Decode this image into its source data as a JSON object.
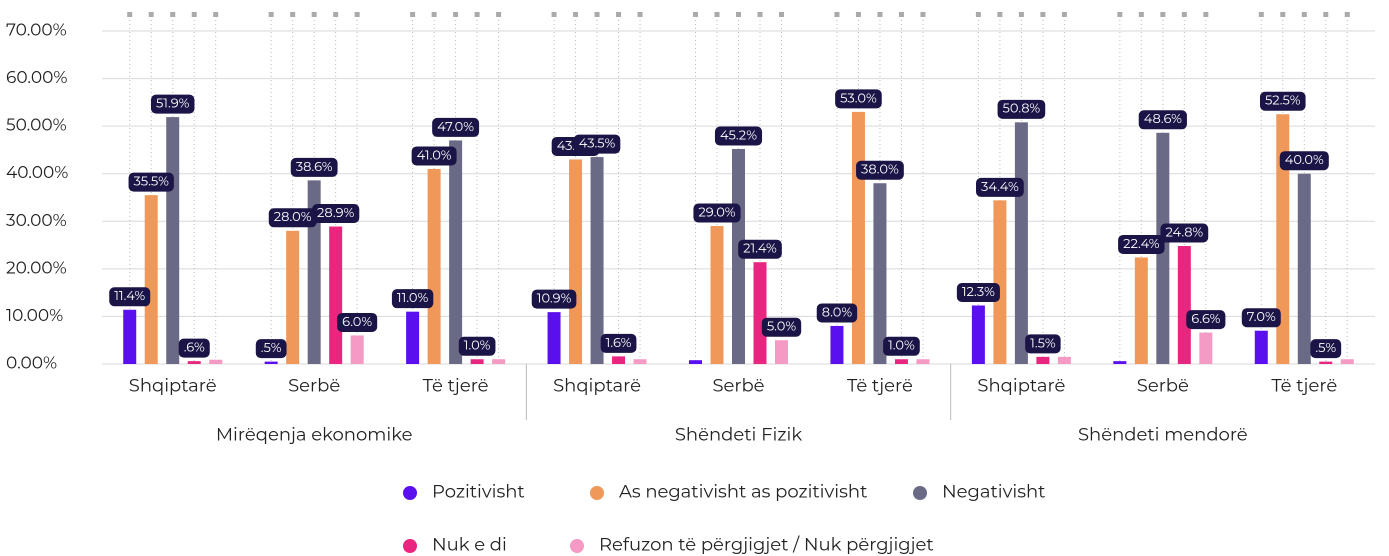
{
  "chart_data": {
    "type": "bar",
    "groups": [
      "Mirëqenja ekonomike",
      "Shëndeti Fizik",
      "Shëndeti mendorë"
    ],
    "categories": [
      "Shqiptarë",
      "Serbë",
      "Të tjerë",
      "Shqiptarë",
      "Serbë",
      "Të tjerë",
      "Shqiptarë",
      "Serbë",
      "Të tjerë"
    ],
    "series": [
      {
        "name": "Pozitivisht",
        "color": "#5a10ee",
        "values": [
          11.4,
          0.5,
          11.0,
          10.9,
          0.8,
          8.0,
          12.3,
          0.6,
          7.0
        ],
        "value_labels": [
          "11.4%",
          ".5%",
          "11.0%",
          "10.9%",
          null,
          "8.0%",
          "12.3%",
          null,
          "7.0%"
        ]
      },
      {
        "name": "As negativisht as pozitivisht",
        "color": "#f0985a",
        "values": [
          35.5,
          28.0,
          41.0,
          43.0,
          29.0,
          53.0,
          34.4,
          22.4,
          52.5
        ],
        "value_labels": [
          "35.5%",
          "28.0%",
          "41.0%",
          "43.0%",
          "29.0%",
          "53.0%",
          "34.4%",
          "22.4%",
          "52.5%"
        ]
      },
      {
        "name": "Negativisht",
        "color": "#6b6a86",
        "values": [
          51.9,
          38.6,
          47.0,
          43.5,
          45.2,
          38.0,
          50.8,
          48.6,
          40.0
        ],
        "value_labels": [
          "51.9%",
          "38.6%",
          "47.0%",
          "43.5%",
          "45.2%",
          "38.0%",
          "50.8%",
          "48.6%",
          "40.0%"
        ]
      },
      {
        "name": "Nuk e di",
        "color": "#e8257f",
        "values": [
          0.6,
          28.9,
          1.0,
          1.6,
          21.4,
          1.0,
          1.5,
          24.8,
          0.5
        ],
        "value_labels": [
          ".6%",
          "28.9%",
          "1.0%",
          "1.6%",
          "21.4%",
          "1.0%",
          "1.5%",
          "24.8%",
          ".5%"
        ]
      },
      {
        "name": "Refuzon të përgjigjet / Nuk përgjigjet",
        "color": "#f49ac4",
        "values": [
          0.9,
          6.0,
          1.0,
          1.0,
          5.0,
          1.0,
          1.5,
          6.6,
          1.0
        ],
        "value_labels": [
          null,
          "6.0%",
          null,
          null,
          "5.0%",
          null,
          null,
          "6.6%",
          null
        ]
      }
    ],
    "ylim": [
      0,
      70
    ],
    "yticks": [
      {
        "value": 0,
        "label": "0.00%"
      },
      {
        "value": 10,
        "label": "10.00%"
      },
      {
        "value": 20,
        "label": "20.00%"
      },
      {
        "value": 30,
        "label": "30.00%"
      },
      {
        "value": 40,
        "label": "40.00%"
      },
      {
        "value": 50,
        "label": "50.00%"
      },
      {
        "value": 60,
        "label": "60.00%"
      },
      {
        "value": 70,
        "label": "70.00%"
      }
    ],
    "grid": true
  }
}
